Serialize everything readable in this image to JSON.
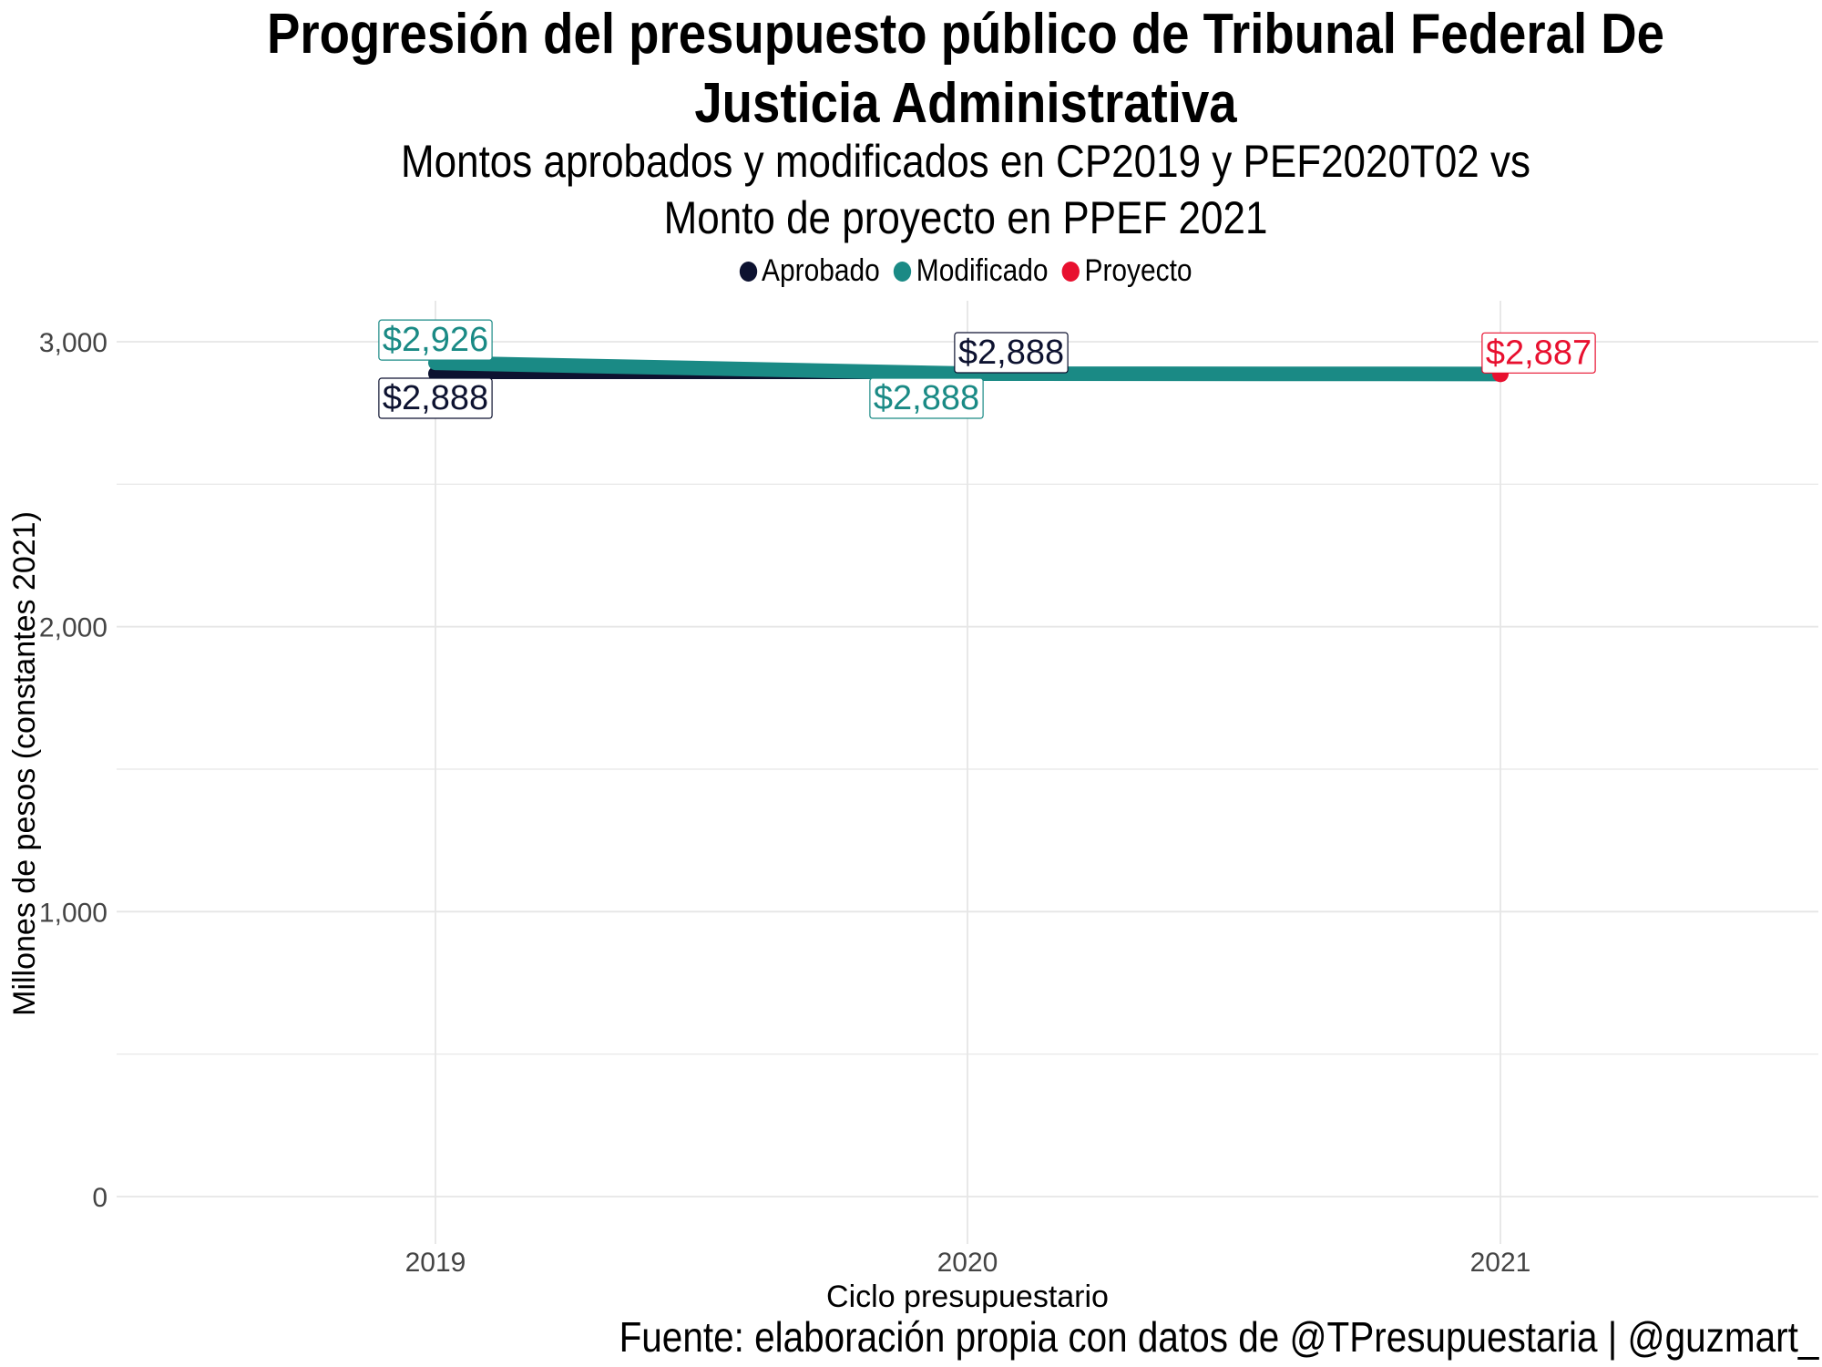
{
  "title": {
    "line1": "Progresión del presupuesto público de Tribunal Federal De",
    "line2": "Justicia  Administrativa"
  },
  "subtitle": {
    "line1": "Montos aprobados y modificados en CP2019 y PEF2020T02 vs",
    "line2": "Monto de proyecto en PPEF 2021"
  },
  "source": "Fuente: elaboración propia con datos de @TPresupuestaria | @guzmart_",
  "colors": {
    "aprobado": "#0d1230",
    "modificado": "#1a8a85",
    "proyecto": "#e8102f",
    "grid": "#e6e6e6",
    "axis_text": "#444444"
  },
  "chart_data": {
    "type": "line",
    "xlabel": "Ciclo presupuestario",
    "ylabel": "Millones de pesos (constantes 2021)",
    "categories": [
      "2019",
      "2020",
      "2021"
    ],
    "ylim": [
      0,
      3100
    ],
    "yticks": [
      0,
      1000,
      2000,
      3000
    ],
    "ytick_labels": [
      "0",
      "1,000",
      "2,000",
      "3,000"
    ],
    "grid": true,
    "legend_position": "top",
    "series": [
      {
        "name": "Aprobado",
        "color": "#0d1230",
        "x": [
          "2019",
          "2020"
        ],
        "values": [
          2888,
          2888
        ],
        "labels": [
          "$2,888",
          "$2,888"
        ]
      },
      {
        "name": "Modificado",
        "color": "#1a8a85",
        "x": [
          "2019",
          "2020",
          "2021"
        ],
        "values": [
          2926,
          2888,
          2887
        ],
        "labels": [
          "$2,926",
          "$2,888",
          ""
        ]
      },
      {
        "name": "Proyecto",
        "color": "#e8102f",
        "x": [
          "2021"
        ],
        "values": [
          2887
        ],
        "labels": [
          "$2,887"
        ]
      }
    ]
  }
}
